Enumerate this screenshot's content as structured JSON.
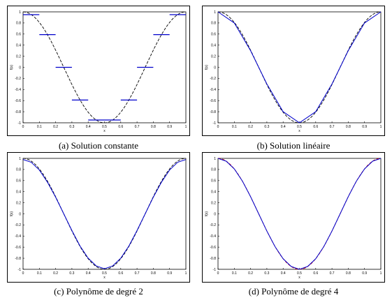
{
  "chart_data": [
    {
      "type": "line",
      "caption": "(a) Solution constante",
      "xlabel": "x",
      "ylabel": "f(x)",
      "xlim": [
        0,
        1
      ],
      "ylim": [
        -1,
        1
      ],
      "xticks": [
        "0",
        "0.1",
        "0.2",
        "0.3",
        "0.4",
        "0.5",
        "0.6",
        "0.7",
        "0.8",
        "0.9",
        "1"
      ],
      "yticks": [
        "-1",
        "-0.8",
        "-0.6",
        "-0.4",
        "-0.2",
        "0",
        "0.2",
        "0.4",
        "0.6",
        "0.8",
        "1"
      ],
      "reference": {
        "function": "cos(2*pi*x)",
        "style": "dashed",
        "color": "#000000"
      },
      "approximation": {
        "kind": "piecewise-constant",
        "color": "#0000cc",
        "segments": [
          {
            "x": [
              0.0,
              0.1
            ],
            "y": 0.95
          },
          {
            "x": [
              0.1,
              0.2
            ],
            "y": 0.59
          },
          {
            "x": [
              0.2,
              0.3
            ],
            "y": 0.0
          },
          {
            "x": [
              0.3,
              0.4
            ],
            "y": -0.59
          },
          {
            "x": [
              0.4,
              0.6
            ],
            "y": -0.95
          },
          {
            "x": [
              0.6,
              0.7
            ],
            "y": -0.59
          },
          {
            "x": [
              0.7,
              0.8
            ],
            "y": 0.0
          },
          {
            "x": [
              0.8,
              0.9
            ],
            "y": 0.59
          },
          {
            "x": [
              0.9,
              1.0
            ],
            "y": 0.95
          }
        ]
      }
    },
    {
      "type": "line",
      "caption": "(b) Solution linéaire",
      "xlabel": "x",
      "ylabel": "f(x)",
      "xlim": [
        0,
        1
      ],
      "ylim": [
        -1,
        1
      ],
      "xticks": [
        "0",
        "0.1",
        "0.2",
        "0.3",
        "0.4",
        "0.5",
        "0.6",
        "0.7",
        "0.8",
        "0.9",
        "1"
      ],
      "yticks": [
        "-1",
        "-0.8",
        "-0.6",
        "-0.4",
        "-0.2",
        "0",
        "0.2",
        "0.4",
        "0.6",
        "0.8",
        "1"
      ],
      "reference": {
        "function": "cos(2*pi*x)",
        "style": "dashed",
        "color": "#000000"
      },
      "approximation": {
        "kind": "piecewise-linear",
        "color": "#0000cc",
        "x": [
          0.0,
          0.1,
          0.2,
          0.3,
          0.4,
          0.5,
          0.6,
          0.7,
          0.8,
          0.9,
          1.0
        ],
        "y": [
          1.0,
          0.8,
          0.3,
          -0.3,
          -0.8,
          -1.0,
          -0.8,
          -0.3,
          0.3,
          0.8,
          1.0
        ]
      }
    },
    {
      "type": "line",
      "caption": "(c) Polynôme de degré 2",
      "xlabel": "x",
      "ylabel": "f(x)",
      "xlim": [
        0,
        1
      ],
      "ylim": [
        -1,
        1
      ],
      "xticks": [
        "0",
        "0.1",
        "0.2",
        "0.3",
        "0.4",
        "0.5",
        "0.6",
        "0.7",
        "0.8",
        "0.9",
        "1"
      ],
      "yticks": [
        "-1",
        "-0.8",
        "-0.6",
        "-0.4",
        "-0.2",
        "0",
        "0.2",
        "0.4",
        "0.6",
        "0.8",
        "1"
      ],
      "reference": {
        "function": "cos(2*pi*x)",
        "style": "dashed",
        "color": "#000000"
      },
      "approximation": {
        "kind": "smooth",
        "color": "#0000cc",
        "x": [
          0.0,
          0.05,
          0.1,
          0.15,
          0.2,
          0.25,
          0.3,
          0.35,
          0.4,
          0.45,
          0.5,
          0.55,
          0.6,
          0.65,
          0.7,
          0.75,
          0.8,
          0.85,
          0.9,
          0.95,
          1.0
        ],
        "y": [
          0.98,
          0.93,
          0.79,
          0.57,
          0.3,
          0.0,
          -0.3,
          -0.58,
          -0.8,
          -0.94,
          -0.99,
          -0.94,
          -0.8,
          -0.58,
          -0.3,
          0.0,
          0.3,
          0.57,
          0.79,
          0.93,
          0.98
        ]
      }
    },
    {
      "type": "line",
      "caption": "(d) Polynôme de degré 4",
      "xlabel": "x",
      "ylabel": "f(x)",
      "xlim": [
        0,
        1
      ],
      "ylim": [
        -1,
        1
      ],
      "xticks": [
        "0",
        "0.1",
        "0.2",
        "0.3",
        "0.4",
        "0.5",
        "0.6",
        "0.7",
        "0.8",
        "0.9",
        "1"
      ],
      "yticks": [
        "-1",
        "-0.8",
        "-0.6",
        "-0.4",
        "-0.2",
        "0",
        "0.2",
        "0.4",
        "0.6",
        "0.8",
        "1"
      ],
      "reference": {
        "function": "cos(2*pi*x)",
        "style": "dashed",
        "color": "#cc0000"
      },
      "approximation": {
        "kind": "smooth",
        "color": "#0000cc",
        "x": [
          0.0,
          0.05,
          0.1,
          0.15,
          0.2,
          0.25,
          0.3,
          0.35,
          0.4,
          0.45,
          0.5,
          0.55,
          0.6,
          0.65,
          0.7,
          0.75,
          0.8,
          0.85,
          0.9,
          0.95,
          1.0
        ],
        "y": [
          1.0,
          0.95,
          0.81,
          0.59,
          0.31,
          0.0,
          -0.31,
          -0.59,
          -0.81,
          -0.95,
          -1.0,
          -0.95,
          -0.81,
          -0.59,
          -0.31,
          0.0,
          0.31,
          0.59,
          0.81,
          0.95,
          1.0
        ]
      }
    }
  ]
}
